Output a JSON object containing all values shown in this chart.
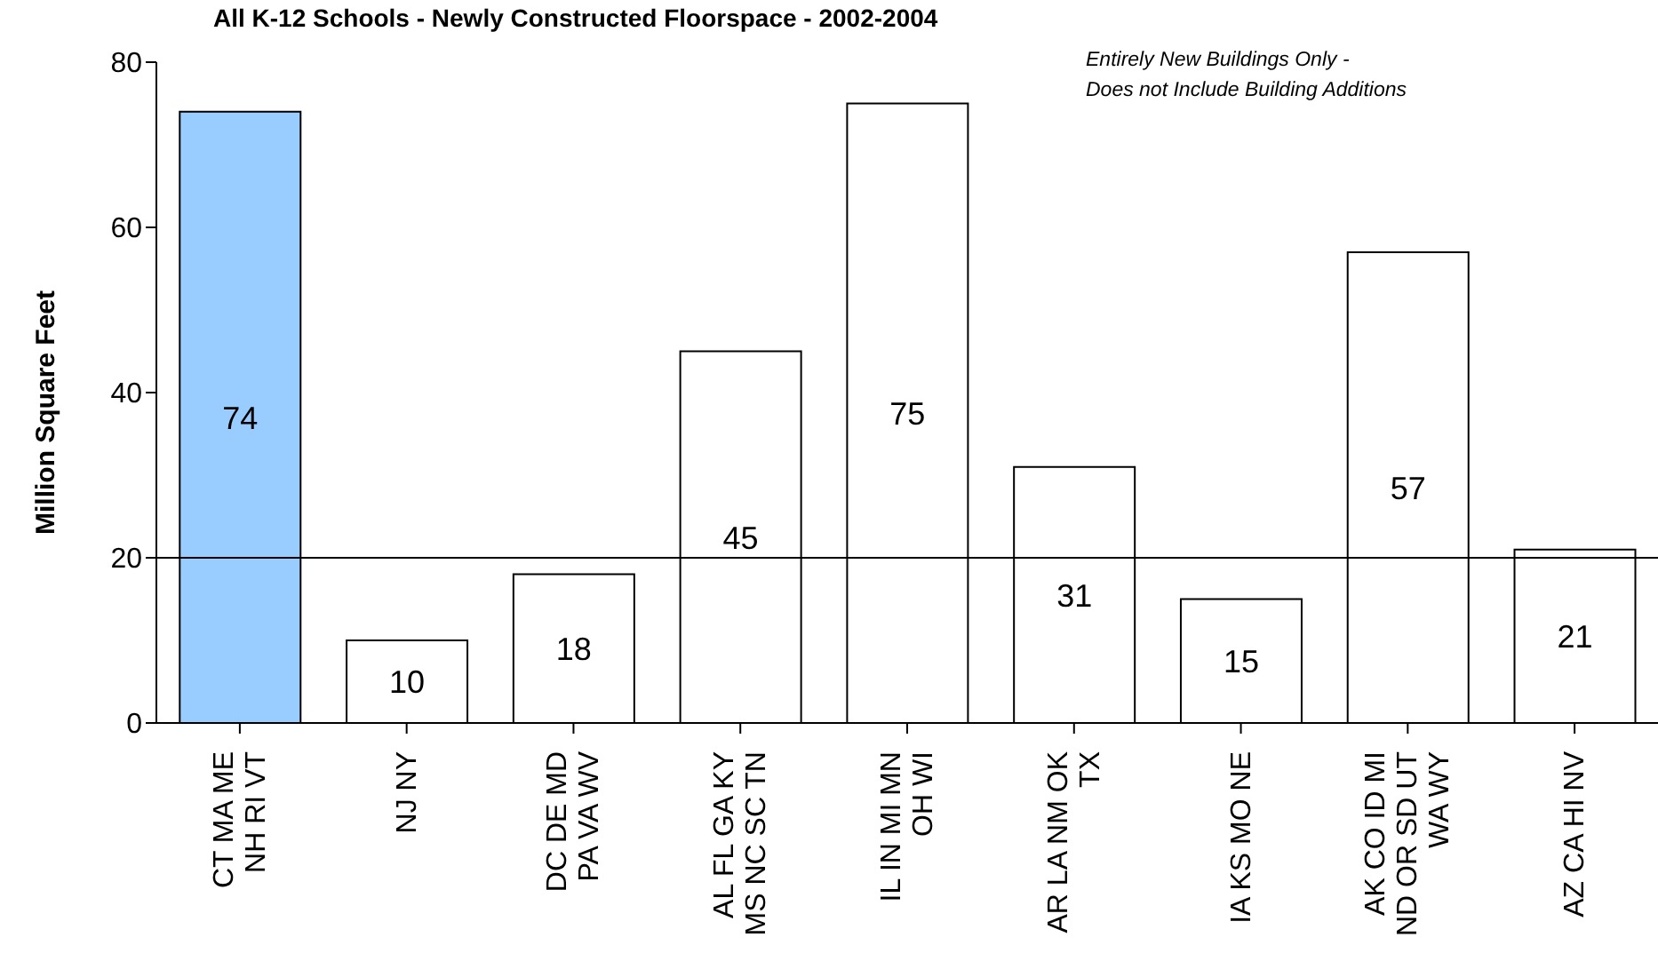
{
  "chart_data": {
    "type": "bar",
    "title": "All K-12 Schools - Newly Constructed Floorspace - 2002-2004",
    "ylabel": "Million Square Feet",
    "categories": [
      "CT MA ME\nNH RI VT",
      "NJ NY",
      "DC DE MD\nPA VA WV",
      "AL FL GA KY\nMS NC SC TN",
      "IL IN MI MN\nOH WI",
      "AR LA NM OK\nTX",
      "IA KS MO NE",
      "AK CO ID MI\nND OR SD UT\nWA WY",
      "AZ CA HI NV"
    ],
    "values": [
      74,
      10,
      18,
      45,
      75,
      31,
      15,
      57,
      21
    ],
    "colors": [
      "#99ccff",
      "#ffffff",
      "#ffffff",
      "#ffffff",
      "#ffffff",
      "#ffffff",
      "#ffffff",
      "#ffffff",
      "#ffffff"
    ],
    "data_labels": true,
    "ylim": [
      0,
      80
    ],
    "yticks": [
      0,
      20,
      40,
      60,
      80
    ],
    "grid": false,
    "legend": false,
    "ref_lines": [
      {
        "axis": "y",
        "value": 20,
        "color": "#000000"
      }
    ],
    "annotations": [
      "Entirely New Buildings Only -\nDoes not Include Building Additions"
    ]
  }
}
